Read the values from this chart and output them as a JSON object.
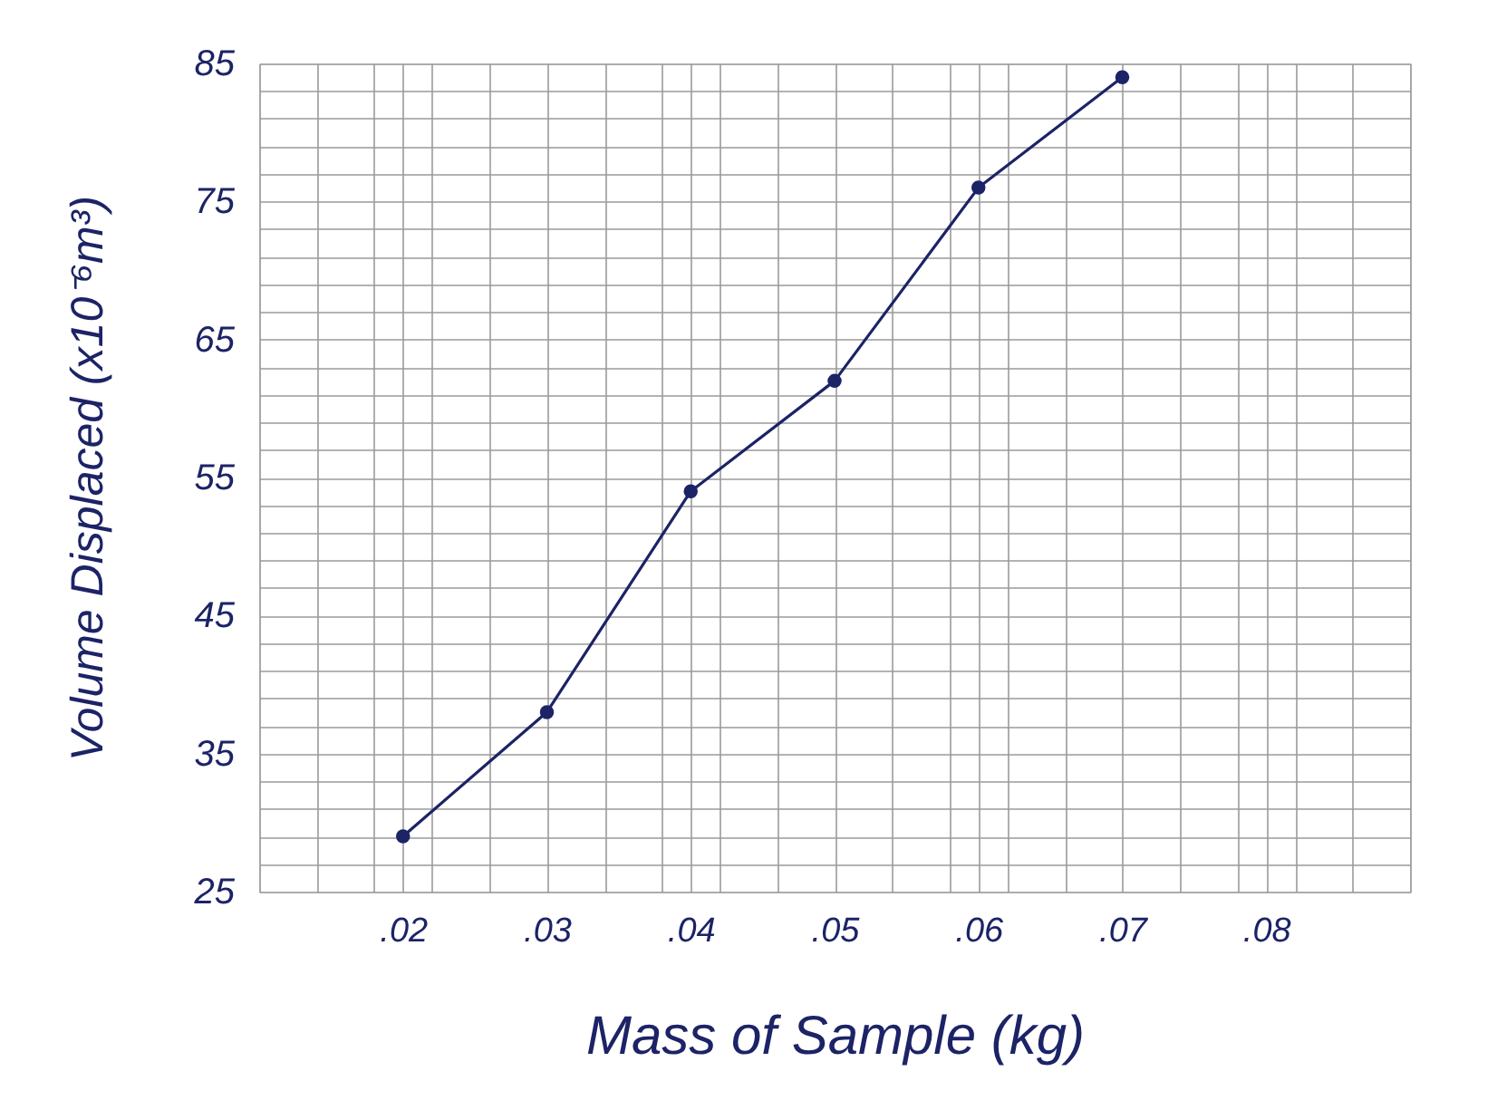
{
  "chart_data": {
    "type": "line",
    "xlabel": "Mass of Sample (kg)",
    "ylabel": "Volume Displaced (x10⁻⁶m³)",
    "x": [
      0.02,
      0.03,
      0.04,
      0.05,
      0.06,
      0.07
    ],
    "series": [
      {
        "color": "#1c2366",
        "values": [
          29,
          38,
          54,
          62,
          76,
          84
        ]
      }
    ],
    "xlim": [
      0.01,
      0.09
    ],
    "xticks": [
      {
        "value": 0.01,
        "label": null
      },
      {
        "value": 0.014,
        "label": null
      },
      {
        "value": 0.018,
        "label": null
      },
      {
        "value": 0.02,
        "label": ".02"
      },
      {
        "value": 0.022,
        "label": null
      },
      {
        "value": 0.026,
        "label": null
      },
      {
        "value": 0.03,
        "label": ".03"
      },
      {
        "value": 0.034,
        "label": null
      },
      {
        "value": 0.038,
        "label": null
      },
      {
        "value": 0.04,
        "label": ".04"
      },
      {
        "value": 0.042,
        "label": null
      },
      {
        "value": 0.046,
        "label": null
      },
      {
        "value": 0.05,
        "label": ".05"
      },
      {
        "value": 0.054,
        "label": null
      },
      {
        "value": 0.058,
        "label": null
      },
      {
        "value": 0.06,
        "label": ".06"
      },
      {
        "value": 0.062,
        "label": null
      },
      {
        "value": 0.066,
        "label": null
      },
      {
        "value": 0.07,
        "label": ".07"
      },
      {
        "value": 0.074,
        "label": null
      },
      {
        "value": 0.078,
        "label": null
      },
      {
        "value": 0.08,
        "label": ".08"
      },
      {
        "value": 0.082,
        "label": null
      },
      {
        "value": 0.086,
        "label": null
      },
      {
        "value": 0.09,
        "label": null
      }
    ],
    "ylim": [
      25,
      85
    ],
    "yticks": [
      25,
      {
        "value": 27,
        "label": null
      },
      {
        "value": 29,
        "label": null
      },
      {
        "value": 31,
        "label": null
      },
      {
        "value": 33,
        "label": null
      },
      35,
      {
        "value": 37,
        "label": null
      },
      {
        "value": 39,
        "label": null
      },
      {
        "value": 41,
        "label": null
      },
      {
        "value": 43,
        "label": null
      },
      45,
      {
        "value": 47,
        "label": null
      },
      {
        "value": 49,
        "label": null
      },
      {
        "value": 51,
        "label": null
      },
      {
        "value": 53,
        "label": null
      },
      55,
      {
        "value": 57,
        "label": null
      },
      {
        "value": 59,
        "label": null
      },
      {
        "value": 61,
        "label": null
      },
      {
        "value": 63,
        "label": null
      },
      65,
      {
        "value": 67,
        "label": null
      },
      {
        "value": 69,
        "label": null
      },
      {
        "value": 71,
        "label": null
      },
      {
        "value": 73,
        "label": null
      },
      75,
      {
        "value": 77,
        "label": null
      },
      {
        "value": 79,
        "label": null
      },
      {
        "value": 81,
        "label": null
      },
      {
        "value": 83,
        "label": null
      },
      85
    ],
    "grid": true,
    "marker": "circle",
    "line_style": "solid"
  }
}
